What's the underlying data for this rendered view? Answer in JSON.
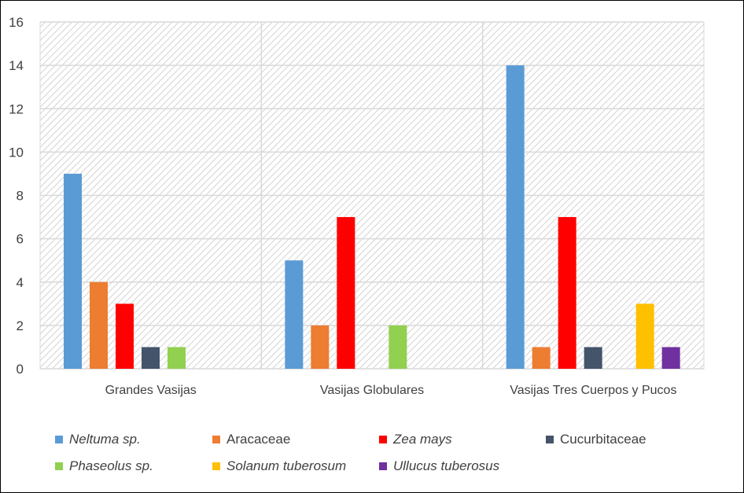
{
  "chart_data": {
    "type": "bar",
    "title": "",
    "xlabel": "",
    "ylabel": "",
    "ylim": [
      0,
      16
    ],
    "yticks": [
      "0",
      "2",
      "4",
      "6",
      "8",
      "10",
      "12",
      "14",
      "16"
    ],
    "grid": true,
    "legend_position": "bottom",
    "categories": [
      "Grandes Vasijas",
      "Vasijas Globulares",
      "Vasijas Tres Cuerpos y Pucos"
    ],
    "series": [
      {
        "name": "Neltuma sp.",
        "italic": true,
        "color": "#5B9BD5",
        "values": [
          9,
          5,
          14
        ]
      },
      {
        "name": "Aracaceae",
        "italic": false,
        "color": "#ED7D31",
        "values": [
          4,
          2,
          1
        ]
      },
      {
        "name": "Zea mays",
        "italic": true,
        "color": "#FF0000",
        "values": [
          3,
          7,
          7
        ]
      },
      {
        "name": "Cucurbitaceae",
        "italic": false,
        "color": "#44546A",
        "values": [
          1,
          0,
          1
        ]
      },
      {
        "name": "Phaseolus sp.",
        "italic": true,
        "color": "#92D050",
        "values": [
          1,
          2,
          0
        ]
      },
      {
        "name": "Solanum tuberosum",
        "italic": true,
        "color": "#FFC000",
        "values": [
          0,
          0,
          3
        ]
      },
      {
        "name": "Ullucus tuberosus",
        "italic": true,
        "color": "#7030A0",
        "values": [
          0,
          0,
          1
        ]
      }
    ]
  }
}
